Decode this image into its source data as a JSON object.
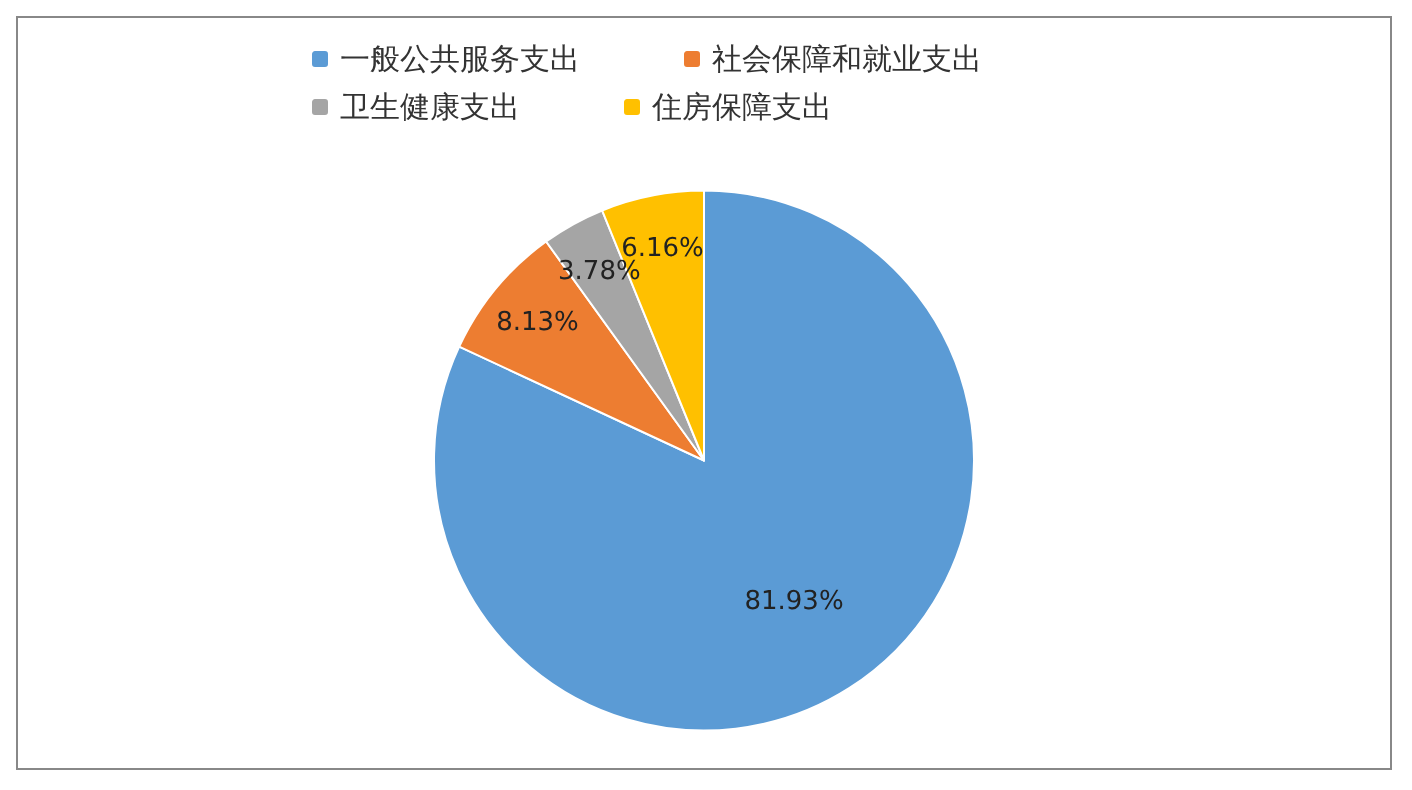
{
  "chart_data": {
    "type": "pie",
    "categories": [
      "一般公共服务支出",
      "社会保障和就业支出",
      "卫生健康支出",
      "住房保障支出"
    ],
    "values": [
      81.93,
      8.13,
      3.78,
      6.16
    ],
    "colors": [
      "#5b9bd5",
      "#ed7d31",
      "#a5a5a5",
      "#ffc000"
    ],
    "value_labels": [
      "81.93%",
      "8.13%",
      "3.78%",
      "6.16%"
    ],
    "legend": "top"
  }
}
